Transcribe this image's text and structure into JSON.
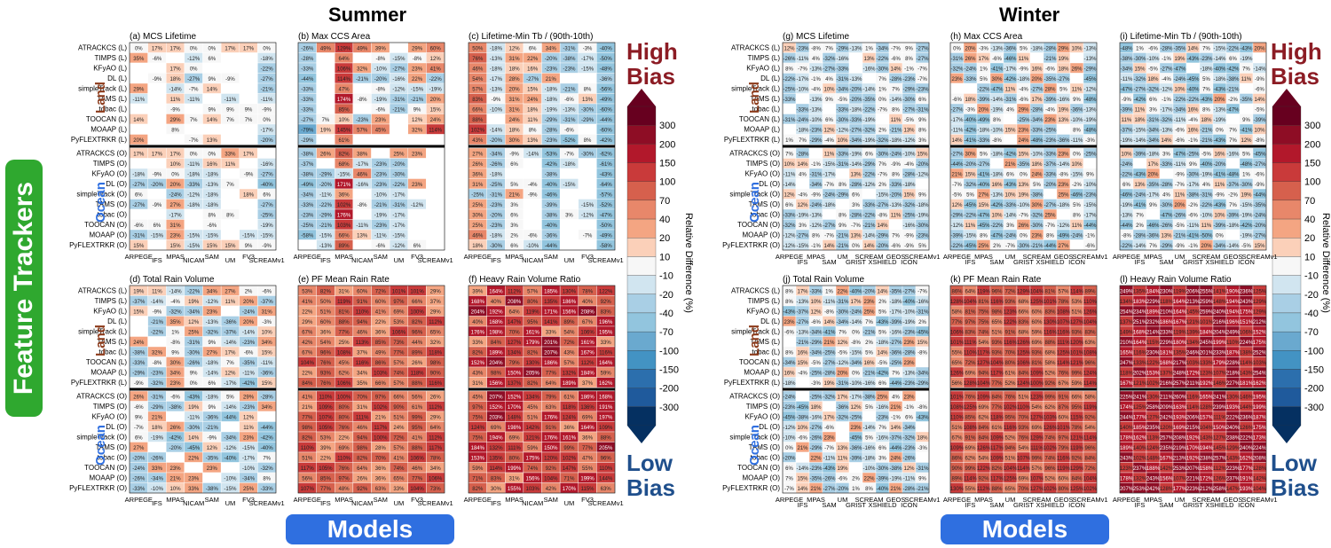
{
  "titles": {
    "summer": "Summer",
    "winter": "Winter"
  },
  "badges": {
    "feature_trackers": "Feature Trackers",
    "models": "Models"
  },
  "bias_labels": {
    "high": "High Bias",
    "low": "Low Bias"
  },
  "region_labels": {
    "land": "Land",
    "ocean": "Ocean"
  },
  "colorbar": {
    "label": "Relative Difference (%)",
    "ticks": [
      "300",
      "200",
      "150",
      "100",
      "70",
      "40",
      "20",
      "10",
      "-10",
      "-20",
      "-40",
      "-70",
      "-100",
      "-150",
      "-200",
      "-300"
    ],
    "colors": [
      "#67001f",
      "#8e0d25",
      "#b2182b",
      "#c93a3a",
      "#d6604d",
      "#e8876a",
      "#f4a582",
      "#fbd0b9",
      "#f7f7f7",
      "#d1e5f0",
      "#a9cfe5",
      "#92c5de",
      "#6aa9cf",
      "#4393c3",
      "#2c6fad",
      "#1f5a9c",
      "#053061"
    ]
  },
  "trackers_land": [
    "ATRACKCS (L)",
    "TIMPS (L)",
    "KFyAO (L)",
    "DL (L)",
    "simpleTrack (L)",
    "TAMS (L)",
    "tobac (L)",
    "TOOCAN (L)",
    "MOAAP (L)",
    "PyFLEXTRKR (L)"
  ],
  "trackers_ocean": [
    "ATRACKCS (O)",
    "TIMPS (O)",
    "KFyAO (O)",
    "DL (O)",
    "simpleTrack (O)",
    "TAMS (O)",
    "tobac (O)",
    "TOOCAN (O)",
    "MOAAP (O)",
    "PyFLEXTRKR (O)"
  ],
  "summer_models": [
    "ARPEGE",
    "IFS",
    "MPAS",
    "NICAM",
    "SAM",
    "UM",
    "FV3",
    "SCREAMv1"
  ],
  "winter_models": [
    "ARPEGE",
    "IFS",
    "MPAS",
    "SAM",
    "UM",
    "GRIST",
    "SCREAM",
    "XSHIELD",
    "GEOS",
    "ICON",
    "SCREAMv1"
  ],
  "chart_data": [
    {
      "type": "heatmap",
      "id": "a",
      "title": "(a) MCS Lifetime",
      "season": "Summer",
      "rows_land": [
        [
          "0%",
          "17%",
          "17%",
          "0%",
          "0%",
          "17%",
          "17%",
          "0%"
        ],
        [
          "35%",
          "-6%",
          "",
          "-12%",
          "6%",
          "",
          "",
          "-18%"
        ],
        [
          "",
          "",
          "17%",
          "0%",
          "",
          "",
          "",
          "-22%"
        ],
        [
          "",
          "-9%",
          "18%",
          "-27%",
          "9%",
          "-9%",
          "",
          "-27%"
        ],
        [
          "29%",
          "",
          "-14%",
          "-7%",
          "14%",
          "",
          "",
          "-21%"
        ],
        [
          "-11%",
          "",
          "11%",
          "-11%",
          "",
          "-11%",
          "",
          "-11%"
        ],
        [
          "",
          "",
          "-9%",
          "",
          "9%",
          "9%",
          "9%",
          "-9%"
        ],
        [
          "14%",
          "",
          "29%",
          "7%",
          "14%",
          "7%",
          "7%",
          "0%"
        ],
        [
          "",
          "",
          "8%",
          "",
          "",
          "",
          "",
          "-17%"
        ],
        [
          "20%",
          "",
          "",
          "-7%",
          "13%",
          "",
          "",
          "-20%"
        ]
      ],
      "rows_ocean": [
        [
          "17%",
          "17%",
          "17%",
          "0%",
          "0%",
          "33%",
          "17%",
          ""
        ],
        [
          "",
          "",
          "10%",
          "-11%",
          "16%",
          "11%",
          "",
          " -16%"
        ],
        [
          "-18%",
          "-9%",
          "0%",
          "-18%",
          "-18%",
          "",
          "-9%",
          "-27%"
        ],
        [
          "-27%",
          "-20%",
          "20%",
          "-33%",
          "-13%",
          "7%",
          "",
          "-40%"
        ],
        [
          "6%",
          "",
          "-24%",
          "-12%",
          "-18%",
          "",
          "18%",
          "6%"
        ],
        [
          "-27%",
          "-9%",
          "27%",
          "-18%",
          "-18%",
          "",
          "",
          "-27%"
        ],
        [
          "",
          "",
          "-17%",
          "",
          "8%",
          "8%",
          "",
          "-25%"
        ],
        [
          "-6%",
          "6%",
          "31%",
          "",
          "-6%",
          "",
          "",
          "-19%"
        ],
        [
          "-31%",
          "-15%",
          "23%",
          "-15%",
          "-15%",
          "",
          "-15%",
          "-15%"
        ],
        [
          "15%",
          "",
          "15%",
          "-15%",
          "15%",
          "15%",
          "9%",
          "-9%"
        ]
      ]
    },
    {
      "type": "heatmap",
      "id": "b",
      "title": "(b) Max CCS Area",
      "season": "Summer",
      "rows_land": [
        [
          "-26%",
          "49%",
          "129%",
          "49%",
          "39%",
          "",
          "29%",
          "60%"
        ],
        [
          "-28%",
          "",
          "64%",
          "",
          "-8%",
          "-15%",
          "-8%",
          "12%"
        ],
        [
          "-33%",
          "",
          "106%",
          "32%",
          "-10%",
          "-27%",
          "23%",
          "41%"
        ],
        [
          "-44%",
          "",
          "114%",
          "-21%",
          "-20%",
          "-16%",
          "22%",
          "-22%"
        ],
        [
          "-33%",
          "",
          "47%",
          "",
          "-8%",
          "-12%",
          "-15%",
          "-19%"
        ],
        [
          "-33%",
          "",
          "174%",
          "-8%",
          "-19%",
          "-31%",
          "-21%",
          "20%"
        ],
        [
          "-33%",
          "",
          "85%",
          "",
          "-6%",
          "-21%",
          "9%",
          "15%"
        ],
        [
          "-27%",
          "7%",
          "10%",
          "-23%",
          "23%",
          "",
          "12%",
          "24%"
        ],
        [
          "-79%",
          "19%",
          "145%",
          "57%",
          "45%",
          "",
          "32%",
          "114%"
        ],
        [
          "-29%",
          "",
          "61%",
          "",
          "",
          "",
          "",
          ""
        ]
      ],
      "rows_ocean": [
        [
          "-38%",
          "26%",
          "82%",
          "38%",
          "",
          "25%",
          "23%",
          ""
        ],
        [
          "-37%",
          "",
          "68%",
          "-17%",
          "-23%",
          "-20%",
          "",
          ""
        ],
        [
          "-38%",
          "-29%",
          "-15%",
          "46%",
          "-23%",
          "-30%",
          "",
          ""
        ],
        [
          "-49%",
          "-20%",
          "171%",
          "-16%",
          "-23%",
          "-22%",
          "23%",
          ""
        ],
        [
          "-34%",
          "-11%",
          "36%",
          "",
          "-10%",
          "-17%",
          "",
          ""
        ],
        [
          "-33%",
          "-22%",
          "102%",
          "-8%",
          "-21%",
          "-31%",
          "-12%",
          ""
        ],
        [
          "-23%",
          "-29%",
          "176%",
          "",
          "-19%",
          "-17%",
          "",
          ""
        ],
        [
          "-25%",
          "-21%",
          "103%",
          "-11%",
          "-23%",
          "-17%",
          "",
          ""
        ],
        [
          "-58%",
          "-15%",
          "66%",
          "13%",
          "-11%",
          "-15%",
          "",
          ""
        ],
        [
          "",
          "-13%",
          "89%",
          "",
          "-6%",
          "-12%",
          "6%",
          ""
        ]
      ]
    },
    {
      "type": "heatmap",
      "id": "c",
      "title": "(c) Lifetime-Min Tb / (90th-10th)",
      "season": "Summer",
      "rows_land": [
        [
          "50%",
          "-18%",
          "12%",
          "6%",
          "34%",
          "-31%",
          "-3%",
          "-40%"
        ],
        [
          "76%",
          "-13%",
          "31%",
          "22%",
          "-20%",
          "-38%",
          "-17%",
          "-50%"
        ],
        [
          "46%",
          "-18%",
          "18%",
          "16%",
          "-23%",
          "-23%",
          "-15%",
          "-48%"
        ],
        [
          "54%",
          "-17%",
          "28%",
          "-27%",
          "21%",
          "",
          "",
          "-36%"
        ],
        [
          "57%",
          "-13%",
          "20%",
          "15%",
          "-18%",
          "-21%",
          "8%",
          "-56%"
        ],
        [
          "83%",
          "-9%",
          "31%",
          "24%",
          "-18%",
          "-6%",
          "13%",
          "-49%"
        ],
        [
          "66%",
          "-10%",
          "31%",
          "18%",
          "-19%",
          "-13%",
          "-30%",
          "-60%"
        ],
        [
          "88%",
          "",
          "24%",
          "11%",
          "-29%",
          "-31%",
          "-29%",
          "-44%"
        ],
        [
          "102%",
          "-14%",
          "18%",
          "8%",
          "-28%",
          "-6%",
          "",
          "-60%"
        ],
        [
          "43%",
          "-20%",
          "30%",
          "13%",
          "-23%",
          "-52%",
          "8%",
          "-42%"
        ]
      ],
      "rows_ocean": [
        [
          "27%",
          "-34%",
          "-9%",
          "-14%",
          "-53%",
          "-7%",
          "-30%",
          "-62%"
        ],
        [
          "26%",
          "-26%",
          "6%",
          "",
          "-42%",
          "-18%",
          "",
          "-61%"
        ],
        [
          "36%",
          "-18%",
          "",
          "",
          "-38%",
          "",
          "",
          "-43%"
        ],
        [
          "31%",
          "-25%",
          "5%",
          "-4%",
          "-40%",
          "-15%",
          "",
          "-64%"
        ],
        [
          "-25%",
          "-31%",
          "21%",
          "-9%",
          "-46%",
          "",
          "",
          "-57%"
        ],
        [
          "25%",
          "-23%",
          "3%",
          "",
          "-39%",
          "",
          "-15%",
          "-52%"
        ],
        [
          "30%",
          "-20%",
          "6%",
          "",
          "-38%",
          "3%",
          "-12%",
          "-47%"
        ],
        [
          "25%",
          "-23%",
          "3%",
          "",
          "-40%",
          "",
          "",
          "-50%"
        ],
        [
          "46%",
          "-18%",
          "2%",
          "-6%",
          "-36%",
          "",
          "-7%",
          "-49%"
        ],
        [
          "18%",
          "-30%",
          "6%",
          "-10%",
          "-44%",
          "",
          "",
          "-58%"
        ]
      ]
    },
    {
      "type": "heatmap",
      "id": "d",
      "title": "(d) Total Rain Volume",
      "season": "Summer"
    },
    {
      "type": "heatmap",
      "id": "e",
      "title": "(e) PF Mean Rain Rate",
      "season": "Summer"
    },
    {
      "type": "heatmap",
      "id": "f",
      "title": "(f) Heavy Rain Volume Ratio",
      "season": "Summer"
    },
    {
      "type": "heatmap",
      "id": "g",
      "title": "(g) MCS Lifetime",
      "season": "Winter"
    },
    {
      "type": "heatmap",
      "id": "h",
      "title": "(h) Max CCS Area",
      "season": "Winter"
    },
    {
      "type": "heatmap",
      "id": "i",
      "title": "(i) Lifetime-Min Tb / (90th-10th)",
      "season": "Winter"
    },
    {
      "type": "heatmap",
      "id": "j",
      "title": "(j) Total Rain Volume",
      "season": "Winter"
    },
    {
      "type": "heatmap",
      "id": "k",
      "title": "(k) PF Mean Rain Rate",
      "season": "Winter"
    },
    {
      "type": "heatmap",
      "id": "l",
      "title": "(l) Heavy Rain Volume Ratio",
      "season": "Winter"
    }
  ]
}
